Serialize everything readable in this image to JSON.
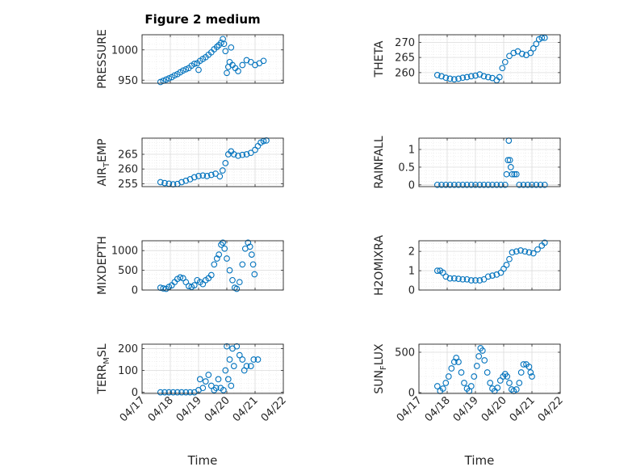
{
  "figure": {
    "title": "Figure 2 medium",
    "xlabel": "Time",
    "marker_color": "#0072BD"
  },
  "chart_data": [
    {
      "id": "pressure",
      "type": "scatter",
      "ylabel": "PRESSURE",
      "xlim": [
        "04/17",
        "04/22"
      ],
      "ylim": [
        945,
        1025
      ],
      "yticks": [
        950,
        1000
      ],
      "xticks": [
        "04/17",
        "04/18",
        "04/19",
        "04/20",
        "04/21",
        "04/22"
      ],
      "grid": true,
      "points": [
        [
          0.65,
          947
        ],
        [
          0.75,
          949
        ],
        [
          0.85,
          951
        ],
        [
          0.95,
          953
        ],
        [
          1.05,
          955
        ],
        [
          1.15,
          958
        ],
        [
          1.25,
          960
        ],
        [
          1.35,
          963
        ],
        [
          1.45,
          966
        ],
        [
          1.55,
          968
        ],
        [
          1.65,
          970
        ],
        [
          1.75,
          974
        ],
        [
          1.85,
          977
        ],
        [
          1.95,
          978
        ],
        [
          2.0,
          967
        ],
        [
          2.05,
          982
        ],
        [
          2.15,
          985
        ],
        [
          2.25,
          988
        ],
        [
          2.35,
          992
        ],
        [
          2.45,
          996
        ],
        [
          2.55,
          1001
        ],
        [
          2.65,
          1005
        ],
        [
          2.72,
          1008
        ],
        [
          2.8,
          1012
        ],
        [
          2.86,
          1018
        ],
        [
          2.9,
          1010
        ],
        [
          2.95,
          998
        ],
        [
          3.0,
          962
        ],
        [
          3.05,
          972
        ],
        [
          3.1,
          980
        ],
        [
          3.15,
          1004
        ],
        [
          3.2,
          975
        ],
        [
          3.3,
          970
        ],
        [
          3.4,
          965
        ],
        [
          3.55,
          975
        ],
        [
          3.7,
          983
        ],
        [
          3.85,
          980
        ],
        [
          4.0,
          975
        ],
        [
          4.15,
          978
        ],
        [
          4.3,
          982
        ]
      ]
    },
    {
      "id": "theta",
      "type": "scatter",
      "ylabel": "THETA",
      "xlim": [
        "04/17",
        "04/22"
      ],
      "ylim": [
        256.5,
        272.5
      ],
      "yticks": [
        260,
        265,
        270
      ],
      "xticks": [
        "04/17",
        "04/18",
        "04/19",
        "04/20",
        "04/21",
        "04/22"
      ],
      "grid": true,
      "points": [
        [
          0.65,
          259.2
        ],
        [
          0.8,
          258.8
        ],
        [
          0.95,
          258.3
        ],
        [
          1.1,
          258.0
        ],
        [
          1.25,
          257.8
        ],
        [
          1.4,
          258.0
        ],
        [
          1.55,
          258.3
        ],
        [
          1.7,
          258.5
        ],
        [
          1.85,
          258.8
        ],
        [
          2.0,
          259.0
        ],
        [
          2.15,
          259.4
        ],
        [
          2.3,
          258.8
        ],
        [
          2.45,
          258.5
        ],
        [
          2.6,
          258.2
        ],
        [
          2.75,
          257.5
        ],
        [
          2.85,
          258.5
        ],
        [
          2.95,
          261.5
        ],
        [
          3.05,
          263.5
        ],
        [
          3.2,
          265.5
        ],
        [
          3.35,
          266.5
        ],
        [
          3.5,
          267.0
        ],
        [
          3.65,
          266.2
        ],
        [
          3.8,
          265.8
        ],
        [
          3.95,
          266.5
        ],
        [
          4.05,
          268.0
        ],
        [
          4.15,
          269.5
        ],
        [
          4.25,
          271.0
        ],
        [
          4.35,
          271.5
        ],
        [
          4.45,
          271.5
        ]
      ]
    },
    {
      "id": "air_temp",
      "type": "scatter",
      "ylabel": "AIR_TEMP",
      "ylabel_display": "AIR",
      "ylabel_sub": "T",
      "ylabel_tail": "EMP",
      "xlim": [
        "04/17",
        "04/22"
      ],
      "ylim": [
        254,
        270.5
      ],
      "yticks": [
        255,
        260,
        265
      ],
      "xticks": [
        "04/17",
        "04/18",
        "04/19",
        "04/20",
        "04/21",
        "04/22"
      ],
      "grid": true,
      "points": [
        [
          0.65,
          255.5
        ],
        [
          0.8,
          255.2
        ],
        [
          0.95,
          255.0
        ],
        [
          1.1,
          254.8
        ],
        [
          1.25,
          254.9
        ],
        [
          1.4,
          255.5
        ],
        [
          1.55,
          256.0
        ],
        [
          1.7,
          256.5
        ],
        [
          1.85,
          257.2
        ],
        [
          2.0,
          257.6
        ],
        [
          2.15,
          257.8
        ],
        [
          2.3,
          257.6
        ],
        [
          2.45,
          258.0
        ],
        [
          2.6,
          258.4
        ],
        [
          2.75,
          257.5
        ],
        [
          2.85,
          259.5
        ],
        [
          2.95,
          262.0
        ],
        [
          3.05,
          265.0
        ],
        [
          3.15,
          266.0
        ],
        [
          3.25,
          265.0
        ],
        [
          3.4,
          264.5
        ],
        [
          3.55,
          264.8
        ],
        [
          3.7,
          265.0
        ],
        [
          3.85,
          265.5
        ],
        [
          4.0,
          266.5
        ],
        [
          4.1,
          267.8
        ],
        [
          4.2,
          269.0
        ],
        [
          4.3,
          269.5
        ],
        [
          4.4,
          269.7
        ]
      ]
    },
    {
      "id": "rainfall",
      "type": "scatter",
      "ylabel": "RAINFALL",
      "xlim": [
        "04/17",
        "04/22"
      ],
      "ylim": [
        -0.05,
        1.32
      ],
      "yticks": [
        0,
        0.5,
        1
      ],
      "xticks": [
        "04/17",
        "04/18",
        "04/19",
        "04/20",
        "04/21",
        "04/22"
      ],
      "grid": true,
      "points": [
        [
          0.65,
          0
        ],
        [
          0.8,
          0
        ],
        [
          0.95,
          0
        ],
        [
          1.1,
          0
        ],
        [
          1.25,
          0
        ],
        [
          1.4,
          0
        ],
        [
          1.55,
          0
        ],
        [
          1.7,
          0
        ],
        [
          1.85,
          0
        ],
        [
          2.0,
          0
        ],
        [
          2.15,
          0
        ],
        [
          2.3,
          0
        ],
        [
          2.45,
          0
        ],
        [
          2.6,
          0
        ],
        [
          2.75,
          0
        ],
        [
          2.9,
          0
        ],
        [
          3.05,
          0
        ],
        [
          3.1,
          0.3
        ],
        [
          3.15,
          0.7
        ],
        [
          3.18,
          1.25
        ],
        [
          3.22,
          0.7
        ],
        [
          3.25,
          0.5
        ],
        [
          3.3,
          0.3
        ],
        [
          3.38,
          0.3
        ],
        [
          3.45,
          0.3
        ],
        [
          3.55,
          0
        ],
        [
          3.7,
          0
        ],
        [
          3.85,
          0
        ],
        [
          4.0,
          0
        ],
        [
          4.15,
          0
        ],
        [
          4.3,
          0
        ],
        [
          4.45,
          0
        ]
      ]
    },
    {
      "id": "mixdepth",
      "type": "scatter",
      "ylabel": "MIXDEPTH",
      "xlim": [
        "04/17",
        "04/22"
      ],
      "ylim": [
        0,
        1250
      ],
      "yticks": [
        0,
        500,
        1000
      ],
      "xticks": [
        "04/17",
        "04/18",
        "04/19",
        "04/20",
        "04/21",
        "04/22"
      ],
      "grid": true,
      "points": [
        [
          0.65,
          60
        ],
        [
          0.75,
          40
        ],
        [
          0.85,
          30
        ],
        [
          0.95,
          80
        ],
        [
          1.05,
          120
        ],
        [
          1.15,
          200
        ],
        [
          1.25,
          280
        ],
        [
          1.35,
          320
        ],
        [
          1.45,
          300
        ],
        [
          1.55,
          200
        ],
        [
          1.65,
          100
        ],
        [
          1.75,
          80
        ],
        [
          1.85,
          120
        ],
        [
          1.95,
          250
        ],
        [
          2.05,
          200
        ],
        [
          2.15,
          150
        ],
        [
          2.25,
          250
        ],
        [
          2.35,
          300
        ],
        [
          2.45,
          380
        ],
        [
          2.55,
          650
        ],
        [
          2.65,
          800
        ],
        [
          2.72,
          900
        ],
        [
          2.8,
          1150
        ],
        [
          2.86,
          1200
        ],
        [
          2.92,
          1050
        ],
        [
          3.0,
          800
        ],
        [
          3.1,
          500
        ],
        [
          3.2,
          250
        ],
        [
          3.28,
          60
        ],
        [
          3.35,
          30
        ],
        [
          3.45,
          200
        ],
        [
          3.55,
          650
        ],
        [
          3.65,
          1050
        ],
        [
          3.75,
          1200
        ],
        [
          3.82,
          1100
        ],
        [
          3.88,
          900
        ],
        [
          3.93,
          650
        ],
        [
          3.98,
          400
        ]
      ]
    },
    {
      "id": "h2omixra",
      "type": "scatter",
      "ylabel": "H2OMIXRA",
      "xlim": [
        "04/17",
        "04/22"
      ],
      "ylim": [
        0,
        2.55
      ],
      "yticks": [
        0,
        1,
        2
      ],
      "xticks": [
        "04/17",
        "04/18",
        "04/19",
        "04/20",
        "04/21",
        "04/22"
      ],
      "grid": true,
      "points": [
        [
          0.65,
          1.0
        ],
        [
          0.75,
          1.0
        ],
        [
          0.85,
          0.9
        ],
        [
          0.95,
          0.7
        ],
        [
          1.1,
          0.6
        ],
        [
          1.25,
          0.6
        ],
        [
          1.4,
          0.58
        ],
        [
          1.55,
          0.55
        ],
        [
          1.7,
          0.55
        ],
        [
          1.85,
          0.5
        ],
        [
          2.0,
          0.5
        ],
        [
          2.15,
          0.5
        ],
        [
          2.3,
          0.55
        ],
        [
          2.45,
          0.7
        ],
        [
          2.6,
          0.75
        ],
        [
          2.75,
          0.8
        ],
        [
          2.9,
          0.9
        ],
        [
          3.0,
          1.1
        ],
        [
          3.1,
          1.3
        ],
        [
          3.2,
          1.6
        ],
        [
          3.3,
          1.95
        ],
        [
          3.45,
          2.0
        ],
        [
          3.6,
          2.05
        ],
        [
          3.75,
          2.0
        ],
        [
          3.9,
          1.95
        ],
        [
          4.05,
          1.9
        ],
        [
          4.2,
          2.1
        ],
        [
          4.35,
          2.3
        ],
        [
          4.45,
          2.45
        ]
      ]
    },
    {
      "id": "terr_msl",
      "type": "scatter",
      "ylabel": "TERR_MSL",
      "ylabel_display": "TERR",
      "ylabel_sub": "M",
      "ylabel_tail": "SL",
      "xlim": [
        "04/17",
        "04/22"
      ],
      "ylim": [
        -5,
        220
      ],
      "yticks": [
        0,
        100,
        200
      ],
      "xticks": [
        "04/17",
        "04/18",
        "04/19",
        "04/20",
        "04/21",
        "04/22"
      ],
      "grid": true,
      "points": [
        [
          0.65,
          0
        ],
        [
          0.8,
          0
        ],
        [
          0.95,
          0
        ],
        [
          1.1,
          0
        ],
        [
          1.25,
          0
        ],
        [
          1.4,
          0
        ],
        [
          1.55,
          0
        ],
        [
          1.7,
          0
        ],
        [
          1.85,
          0
        ],
        [
          2.0,
          10
        ],
        [
          2.05,
          60
        ],
        [
          2.15,
          20
        ],
        [
          2.25,
          50
        ],
        [
          2.35,
          80
        ],
        [
          2.45,
          30
        ],
        [
          2.55,
          10
        ],
        [
          2.62,
          20
        ],
        [
          2.7,
          60
        ],
        [
          2.78,
          20
        ],
        [
          2.88,
          10
        ],
        [
          2.95,
          100
        ],
        [
          3.0,
          210
        ],
        [
          3.05,
          60
        ],
        [
          3.1,
          150
        ],
        [
          3.15,
          30
        ],
        [
          3.2,
          200
        ],
        [
          3.25,
          120
        ],
        [
          3.35,
          210
        ],
        [
          3.45,
          170
        ],
        [
          3.55,
          150
        ],
        [
          3.62,
          100
        ],
        [
          3.7,
          120
        ],
        [
          3.85,
          120
        ],
        [
          3.95,
          150
        ],
        [
          4.1,
          150
        ]
      ]
    },
    {
      "id": "sun_flux",
      "type": "scatter",
      "ylabel": "SUN_FLUX",
      "ylabel_display": "SUN",
      "ylabel_sub": "F",
      "ylabel_tail": "LUX",
      "xlim": [
        "04/17",
        "04/22"
      ],
      "ylim": [
        -10,
        600
      ],
      "yticks": [
        0,
        500
      ],
      "xticks": [
        "04/17",
        "04/18",
        "04/19",
        "04/20",
        "04/21",
        "04/22"
      ],
      "grid": true,
      "points": [
        [
          0.65,
          80
        ],
        [
          0.75,
          20
        ],
        [
          0.85,
          50
        ],
        [
          0.95,
          120
        ],
        [
          1.05,
          200
        ],
        [
          1.15,
          300
        ],
        [
          1.25,
          380
        ],
        [
          1.32,
          430
        ],
        [
          1.4,
          380
        ],
        [
          1.5,
          250
        ],
        [
          1.6,
          120
        ],
        [
          1.7,
          50
        ],
        [
          1.78,
          20
        ],
        [
          1.85,
          80
        ],
        [
          1.95,
          200
        ],
        [
          2.05,
          330
        ],
        [
          2.12,
          450
        ],
        [
          2.18,
          550
        ],
        [
          2.25,
          520
        ],
        [
          2.32,
          400
        ],
        [
          2.42,
          250
        ],
        [
          2.52,
          120
        ],
        [
          2.6,
          50
        ],
        [
          2.68,
          20
        ],
        [
          2.78,
          60
        ],
        [
          2.88,
          150
        ],
        [
          2.98,
          200
        ],
        [
          3.05,
          230
        ],
        [
          3.12,
          200
        ],
        [
          3.2,
          120
        ],
        [
          3.28,
          40
        ],
        [
          3.35,
          20
        ],
        [
          3.45,
          40
        ],
        [
          3.55,
          120
        ],
        [
          3.62,
          250
        ],
        [
          3.7,
          350
        ],
        [
          3.8,
          350
        ],
        [
          3.9,
          320
        ],
        [
          3.95,
          250
        ],
        [
          4.0,
          200
        ]
      ]
    }
  ]
}
